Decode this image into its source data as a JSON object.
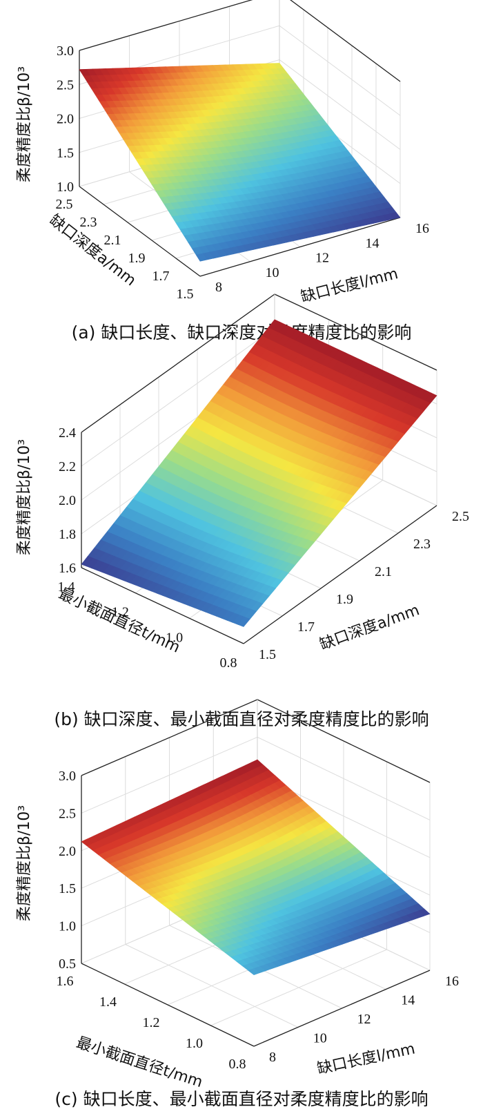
{
  "chart_data": [
    {
      "type": "surface",
      "caption": "(a) 缺口长度、缺口深度对柔度精度比的影响",
      "zlabel": "柔度精度比β/10³",
      "xlabel": "缺口长度l/mm",
      "ylabel": "缺口深度a/mm",
      "x_ticks": [
        "8",
        "10",
        "12",
        "14",
        "16"
      ],
      "y_ticks": [
        "1.5",
        "1.7",
        "1.9",
        "2.1",
        "2.3",
        "2.5"
      ],
      "z_ticks": [
        "1.0",
        "1.5",
        "2.0",
        "2.5",
        "3.0"
      ],
      "xlim": [
        8,
        16
      ],
      "ylim": [
        1.5,
        2.5
      ],
      "zlim": [
        1.0,
        3.0
      ],
      "grid": true,
      "colormap": [
        "#3b3b8f",
        "#3b7fc4",
        "#4fc3e0",
        "#9bdc8a",
        "#f5e642",
        "#f29b3a",
        "#d7372a",
        "#a11c28"
      ],
      "surface_corners": [
        {
          "x": 8,
          "y": 1.5,
          "z": 1.22
        },
        {
          "x": 8,
          "y": 2.5,
          "z": 2.72
        },
        {
          "x": 16,
          "y": 1.5,
          "z": 1.0
        },
        {
          "x": 16,
          "y": 2.5,
          "z": 1.95
        }
      ]
    },
    {
      "type": "surface",
      "caption": "(b) 缺口深度、最小截面直径对柔度精度比的影响",
      "zlabel": "柔度精度比β/10³",
      "xlabel": "缺口深度a/mm",
      "ylabel": "最小截面直径t/mm",
      "x_ticks": [
        "1.5",
        "1.7",
        "1.9",
        "2.1",
        "2.3",
        "2.5"
      ],
      "y_ticks": [
        "0.8",
        "1.0",
        "1.2",
        "1.4"
      ],
      "z_ticks": [
        "1.6",
        "1.8",
        "2.0",
        "2.2",
        "2.4"
      ],
      "xlim": [
        1.5,
        2.5
      ],
      "ylim": [
        0.8,
        1.5
      ],
      "zlim": [
        1.6,
        2.4
      ],
      "grid": true,
      "colormap": [
        "#3b3b8f",
        "#3b7fc4",
        "#4fc3e0",
        "#9bdc8a",
        "#f5e642",
        "#f29b3a",
        "#d7372a",
        "#a11c28"
      ],
      "surface_corners": [
        {
          "x": 1.5,
          "y": 1.5,
          "z": 1.62
        },
        {
          "x": 1.5,
          "y": 0.8,
          "z": 1.7
        },
        {
          "x": 2.5,
          "y": 1.5,
          "z": 2.25
        },
        {
          "x": 2.5,
          "y": 0.8,
          "z": 2.25
        }
      ]
    },
    {
      "type": "surface",
      "caption": "(c) 缺口长度、最小截面直径对柔度精度比的影响",
      "zlabel": "柔度精度比β/10³",
      "xlabel": "缺口长度l/mm",
      "ylabel": "最小截面直径t/mm",
      "x_ticks": [
        "8",
        "10",
        "12",
        "14",
        "16"
      ],
      "y_ticks": [
        "0.8",
        "1.0",
        "1.2",
        "1.4",
        "1.6"
      ],
      "z_ticks": [
        "0.5",
        "1.0",
        "1.5",
        "2.0",
        "2.5",
        "3.0"
      ],
      "xlim": [
        8,
        16
      ],
      "ylim": [
        0.8,
        1.6
      ],
      "zlim": [
        0.5,
        3.0
      ],
      "grid": true,
      "colormap": [
        "#3b3b8f",
        "#3b7fc4",
        "#4fc3e0",
        "#9bdc8a",
        "#f5e642",
        "#f29b3a",
        "#d7372a",
        "#a11c28"
      ],
      "surface_corners": [
        {
          "x": 8,
          "y": 1.6,
          "z": 2.12
        },
        {
          "x": 8,
          "y": 0.8,
          "z": 1.45
        },
        {
          "x": 16,
          "y": 1.6,
          "z": 2.2
        },
        {
          "x": 16,
          "y": 0.8,
          "z": 1.25
        }
      ]
    }
  ]
}
